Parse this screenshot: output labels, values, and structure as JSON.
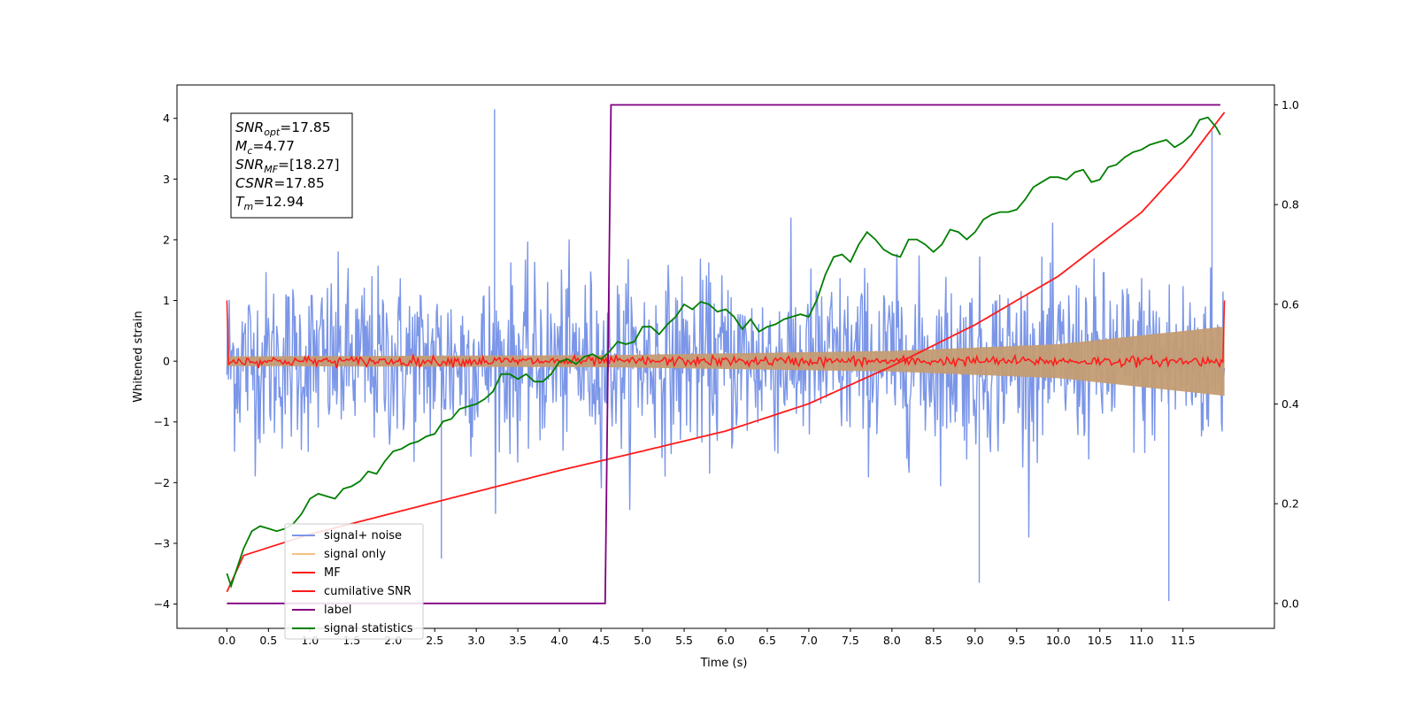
{
  "chart_data": {
    "type": "line",
    "xlabel": "Time (s)",
    "ylabel": "Whitened strain",
    "xlim": [
      -0.6,
      12.6
    ],
    "ylim": [
      -4.4,
      4.55
    ],
    "y2lim": [
      -0.05,
      1.04
    ],
    "xticks": [
      "0.0",
      "0.5",
      "1.0",
      "1.5",
      "2.0",
      "2.5",
      "3.0",
      "3.5",
      "4.0",
      "4.5",
      "5.0",
      "5.5",
      "6.0",
      "6.5",
      "7.0",
      "7.5",
      "8.0",
      "8.5",
      "9.0",
      "9.5",
      "10.0",
      "10.5",
      "11.0",
      "11.5"
    ],
    "yticks": [
      "−4",
      "−3",
      "−2",
      "−1",
      "0",
      "1",
      "2",
      "3",
      "4"
    ],
    "y2ticks": [
      "0.0",
      "0.2",
      "0.4",
      "0.6",
      "0.8",
      "1.0"
    ],
    "annotation": {
      "snr_opt": "=17.85",
      "mc": "=4.77",
      "snr_mf": "=[18.27]",
      "csnr": "=17.85",
      "tm": "=12.94"
    },
    "legend_position": "lower-left",
    "legend": [
      "signal+ noise",
      "signal only",
      "MF",
      "cumilative SNR",
      "label",
      "signal statistics"
    ],
    "colors": {
      "signal_noise": "#7b96e8",
      "signal_only": "#c49c73",
      "signal_only_legend": "#f5c07f",
      "mf": "#ff1a1a",
      "cumulative_snr": "#ff1a1a",
      "label": "#800080",
      "signal_statistics": "#007f00"
    },
    "series": {
      "signal_noise": {
        "x_range": [
          0,
          12
        ],
        "noise_std": 0.72,
        "peaks": [
          [
            3.22,
            4.15
          ],
          [
            11.33,
            -3.95
          ],
          [
            9.05,
            -3.65
          ],
          [
            11.85,
            3.8
          ],
          [
            2.58,
            -3.25
          ]
        ]
      },
      "signal_only_envelope": {
        "x": [
          0,
          4.6,
          8,
          10,
          12
        ],
        "amplitude": [
          0.08,
          0.1,
          0.17,
          0.28,
          0.57
        ]
      },
      "mf": {
        "x_range": [
          0,
          12
        ],
        "baseline": 0.0,
        "fluctuation": 0.08,
        "edge_start": 1.0,
        "edge_end": 1.0
      },
      "cumulative_snr": {
        "x": [
          0,
          0.2,
          1,
          2,
          3,
          4,
          5,
          6,
          7,
          8,
          9,
          10,
          11,
          11.5,
          12
        ],
        "y": [
          -3.8,
          -3.2,
          -2.85,
          -2.5,
          -2.15,
          -1.8,
          -1.48,
          -1.15,
          -0.7,
          -0.08,
          0.6,
          1.4,
          2.45,
          3.2,
          4.1
        ]
      },
      "label": {
        "x": [
          0,
          4.55,
          4.62,
          11.95
        ],
        "y": [
          0,
          0,
          1,
          1
        ]
      },
      "signal_statistics": {
        "x": [
          0,
          0.05,
          0.1,
          0.2,
          0.3,
          0.4,
          0.5,
          0.6,
          0.7,
          0.8,
          0.9,
          1.0,
          1.1,
          1.2,
          1.3,
          1.4,
          1.5,
          1.6,
          1.7,
          1.8,
          1.9,
          2.0,
          2.1,
          2.2,
          2.3,
          2.4,
          2.5,
          2.6,
          2.7,
          2.8,
          2.9,
          3.0,
          3.1,
          3.2,
          3.3,
          3.4,
          3.5,
          3.6,
          3.7,
          3.8,
          3.9,
          4.0,
          4.1,
          4.2,
          4.3,
          4.4,
          4.5,
          4.6,
          4.7,
          4.8,
          4.9,
          5.0,
          5.1,
          5.2,
          5.3,
          5.4,
          5.5,
          5.6,
          5.7,
          5.8,
          5.9,
          6.0,
          6.1,
          6.2,
          6.3,
          6.4,
          6.5,
          6.6,
          6.7,
          6.8,
          6.9,
          7.0,
          7.1,
          7.2,
          7.3,
          7.4,
          7.5,
          7.6,
          7.7,
          7.8,
          7.9,
          8.0,
          8.1,
          8.2,
          8.3,
          8.4,
          8.5,
          8.6,
          8.7,
          8.8,
          8.9,
          9.0,
          9.1,
          9.2,
          9.3,
          9.4,
          9.5,
          9.6,
          9.7,
          9.8,
          9.9,
          10.0,
          10.1,
          10.2,
          10.3,
          10.4,
          10.5,
          10.6,
          10.7,
          10.8,
          10.9,
          11.0,
          11.1,
          11.2,
          11.3,
          11.4,
          11.5,
          11.6,
          11.7,
          11.8,
          11.9,
          11.95
        ],
        "y": [
          0.06,
          0.035,
          0.06,
          0.11,
          0.145,
          0.155,
          0.15,
          0.145,
          0.15,
          0.16,
          0.18,
          0.21,
          0.22,
          0.215,
          0.21,
          0.23,
          0.235,
          0.245,
          0.265,
          0.26,
          0.285,
          0.305,
          0.31,
          0.32,
          0.325,
          0.335,
          0.34,
          0.365,
          0.37,
          0.39,
          0.395,
          0.4,
          0.41,
          0.425,
          0.46,
          0.46,
          0.45,
          0.46,
          0.445,
          0.445,
          0.46,
          0.485,
          0.49,
          0.48,
          0.495,
          0.5,
          0.49,
          0.505,
          0.525,
          0.52,
          0.525,
          0.555,
          0.555,
          0.54,
          0.56,
          0.575,
          0.6,
          0.59,
          0.605,
          0.6,
          0.585,
          0.59,
          0.575,
          0.55,
          0.57,
          0.545,
          0.555,
          0.56,
          0.57,
          0.575,
          0.58,
          0.575,
          0.61,
          0.66,
          0.695,
          0.7,
          0.685,
          0.72,
          0.745,
          0.73,
          0.71,
          0.7,
          0.695,
          0.73,
          0.73,
          0.72,
          0.705,
          0.72,
          0.75,
          0.745,
          0.73,
          0.745,
          0.77,
          0.78,
          0.785,
          0.785,
          0.79,
          0.81,
          0.835,
          0.845,
          0.855,
          0.855,
          0.85,
          0.865,
          0.87,
          0.845,
          0.85,
          0.875,
          0.88,
          0.895,
          0.905,
          0.91,
          0.92,
          0.925,
          0.93,
          0.915,
          0.925,
          0.94,
          0.97,
          0.975,
          0.955,
          0.94
        ]
      }
    }
  }
}
